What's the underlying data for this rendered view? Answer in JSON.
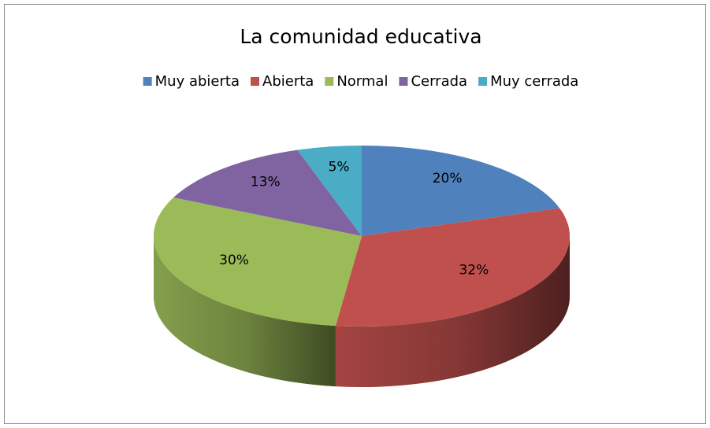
{
  "chart_data": {
    "type": "pie",
    "title": "La comunidad educativa",
    "categories": [
      "Muy abierta",
      "Abierta",
      "Normal",
      "Cerrada",
      "Muy cerrada"
    ],
    "values": [
      20,
      32,
      30,
      13,
      5
    ],
    "value_labels": [
      "20%",
      "32%",
      "30%",
      "13%",
      "5%"
    ],
    "colors": [
      "#4f81bd",
      "#c0504d",
      "#9bbb59",
      "#8064a2",
      "#4bacc6"
    ],
    "legend": "top"
  }
}
